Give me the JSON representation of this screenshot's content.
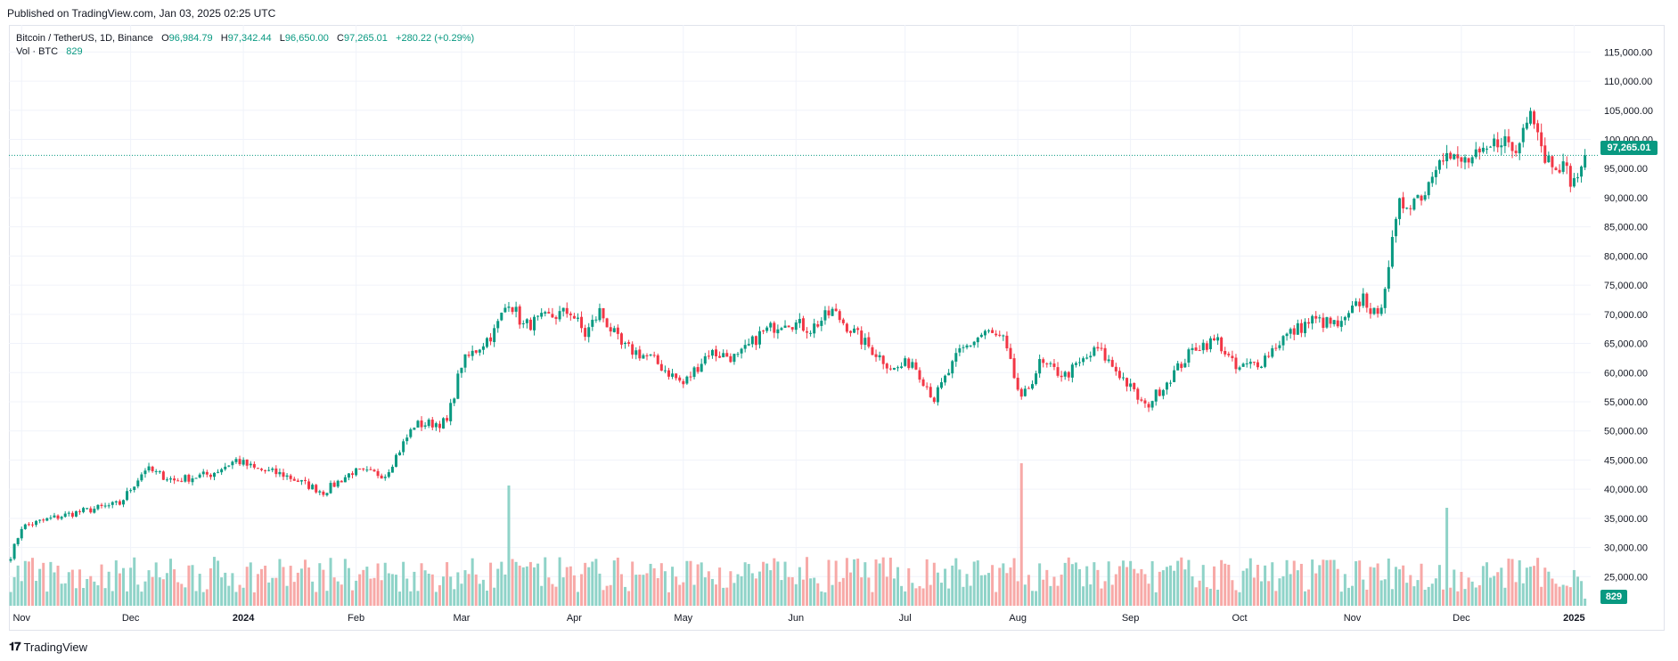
{
  "header": {
    "published": "Published on TradingView.com, Jan 03, 2025 02:25 UTC"
  },
  "legend": {
    "symbol": "Bitcoin / TetherUS, 1D, Binance",
    "o_label": "O",
    "o_value": "96,984.79",
    "h_label": "H",
    "h_value": "97,342.44",
    "l_label": "L",
    "l_value": "96,650.00",
    "c_label": "C",
    "c_value": "97,265.01",
    "change": "+280.22 (+0.29%)",
    "vol_label": "Vol · BTC",
    "vol_value": "829"
  },
  "price_tag": "97,265.01",
  "vol_tag": "829",
  "footer": {
    "brand": "TradingView",
    "logo": "tv-logo"
  },
  "colors": {
    "up": "#089981",
    "down": "#f23645",
    "vol_up": "#8fd3c8",
    "vol_down": "#f7a9a7",
    "grid": "#f0f3fa"
  },
  "chart_data": {
    "type": "candlestick",
    "title": "Bitcoin / TetherUS, 1D, Binance",
    "ylim": [
      20000,
      117000
    ],
    "y_ticks": [
      "115,000.00",
      "110,000.00",
      "105,000.00",
      "100,000.00",
      "95,000.00",
      "90,000.00",
      "85,000.00",
      "80,000.00",
      "75,000.00",
      "70,000.00",
      "65,000.00",
      "60,000.00",
      "55,000.00",
      "50,000.00",
      "45,000.00",
      "40,000.00",
      "35,000.00",
      "30,000.00",
      "25,000.00"
    ],
    "x_ticks": [
      "Nov",
      "Dec",
      "2024",
      "Feb",
      "Mar",
      "Apr",
      "May",
      "Jun",
      "Jul",
      "Aug",
      "Sep",
      "Oct",
      "Nov",
      "Dec",
      "2025"
    ],
    "x_tick_days": [
      3,
      33,
      64,
      95,
      124,
      155,
      185,
      216,
      246,
      277,
      308,
      338,
      369,
      399,
      430
    ],
    "close_anchors": [
      [
        0,
        28500
      ],
      [
        3,
        33500
      ],
      [
        10,
        34800
      ],
      [
        18,
        36000
      ],
      [
        30,
        37500
      ],
      [
        37,
        43500
      ],
      [
        45,
        41500
      ],
      [
        55,
        42600
      ],
      [
        62,
        45000
      ],
      [
        67,
        43500
      ],
      [
        75,
        42500
      ],
      [
        86,
        39500
      ],
      [
        94,
        43000
      ],
      [
        103,
        42500
      ],
      [
        111,
        51000
      ],
      [
        120,
        51500
      ],
      [
        124,
        61500
      ],
      [
        133,
        67000
      ],
      [
        137,
        72500
      ],
      [
        141,
        68000
      ],
      [
        148,
        69500
      ],
      [
        154,
        70500
      ],
      [
        158,
        66500
      ],
      [
        162,
        70500
      ],
      [
        168,
        64500
      ],
      [
        176,
        62500
      ],
      [
        185,
        58000
      ],
      [
        192,
        63500
      ],
      [
        200,
        62500
      ],
      [
        206,
        66500
      ],
      [
        213,
        69000
      ],
      [
        220,
        67500
      ],
      [
        226,
        70500
      ],
      [
        235,
        65000
      ],
      [
        243,
        60500
      ],
      [
        248,
        62000
      ],
      [
        254,
        55500
      ],
      [
        261,
        63500
      ],
      [
        268,
        67000
      ],
      [
        273,
        65500
      ],
      [
        278,
        55000
      ],
      [
        283,
        61500
      ],
      [
        290,
        59500
      ],
      [
        299,
        64000
      ],
      [
        306,
        59000
      ],
      [
        312,
        54000
      ],
      [
        320,
        60000
      ],
      [
        326,
        64500
      ],
      [
        332,
        65500
      ],
      [
        337,
        60500
      ],
      [
        344,
        62000
      ],
      [
        350,
        66000
      ],
      [
        358,
        69000
      ],
      [
        366,
        68000
      ],
      [
        372,
        73000
      ],
      [
        376,
        69000
      ],
      [
        382,
        88500
      ],
      [
        389,
        91000
      ],
      [
        393,
        98000
      ],
      [
        398,
        96000
      ],
      [
        405,
        97000
      ],
      [
        410,
        100500
      ],
      [
        414,
        97500
      ],
      [
        418,
        106500
      ],
      [
        422,
        97000
      ],
      [
        426,
        96000
      ],
      [
        430,
        92500
      ],
      [
        433,
        97265
      ]
    ],
    "last_close": 97265.01,
    "volume_unit": "Vol · BTC",
    "last_volume": 829
  }
}
